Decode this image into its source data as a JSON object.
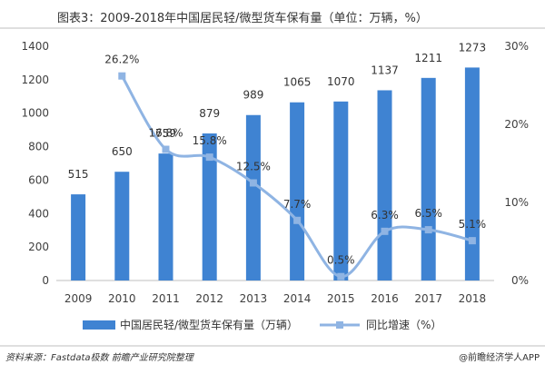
{
  "title": "图表3：2009-2018年中国居民轻/微型货车保有量（单位：万辆，%）",
  "footer": {
    "source": "资料来源：Fastdata极数 前瞻产业研究院整理",
    "brand": "@前瞻经济学人APP"
  },
  "colors": {
    "bar": "#3f83d2",
    "line": "#8fb4e3",
    "text": "#333333"
  },
  "chart_data": {
    "type": "bar",
    "categories": [
      "2009",
      "2010",
      "2011",
      "2012",
      "2013",
      "2014",
      "2015",
      "2016",
      "2017",
      "2018"
    ],
    "series": [
      {
        "name": "中国居民轻/微型货车保有量（万辆）",
        "type": "bar",
        "axis": "left",
        "values": [
          515,
          650,
          759,
          879,
          989,
          1065,
          1070,
          1137,
          1211,
          1273
        ],
        "labels": [
          "515",
          "650",
          "759",
          "879",
          "989",
          "1065",
          "1070",
          "1137",
          "1211",
          "1273"
        ]
      },
      {
        "name": "同比增速（%）",
        "type": "line",
        "axis": "right",
        "values": [
          null,
          26.2,
          16.8,
          15.8,
          12.5,
          7.7,
          0.5,
          6.3,
          6.5,
          5.1
        ],
        "labels": [
          "",
          "26.2%",
          "16.8%",
          "15.8%",
          "12.5%",
          "7.7%",
          "0.5%",
          "6.3%",
          "6.5%",
          "5.1%"
        ]
      }
    ],
    "y_left": {
      "min": 0,
      "max": 1400,
      "ticks": [
        "0",
        "200",
        "400",
        "600",
        "800",
        "1000",
        "1200",
        "1400"
      ]
    },
    "y_right": {
      "min": 0,
      "max": 30,
      "ticks": [
        "0%",
        "10%",
        "20%",
        "30%"
      ]
    },
    "grid": false,
    "legend_position": "bottom"
  }
}
